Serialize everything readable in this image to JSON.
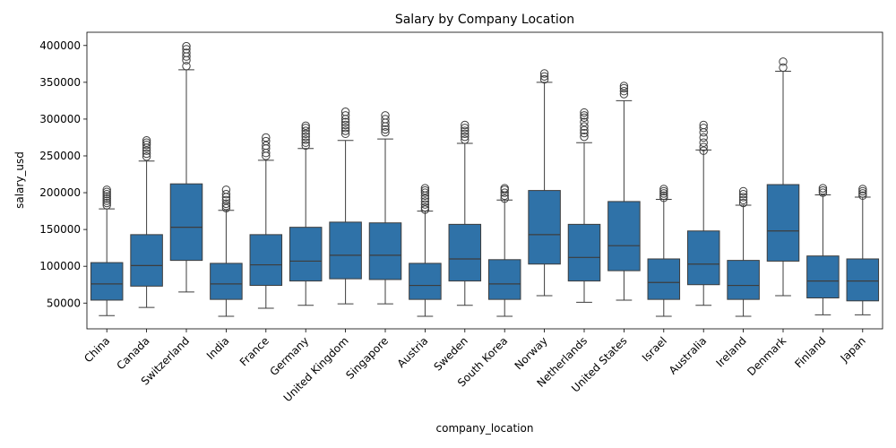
{
  "chart_data": {
    "type": "boxplot",
    "title": "Salary by Company Location",
    "xlabel": "company_location",
    "ylabel": "salary_usd",
    "ylim": [
      15000,
      418000
    ],
    "yticks": [
      50000,
      100000,
      150000,
      200000,
      250000,
      300000,
      350000,
      400000
    ],
    "ytick_labels": [
      "50000",
      "100000",
      "150000",
      "200000",
      "250000",
      "300000",
      "350000",
      "400000"
    ],
    "box_color": "#2f72a8",
    "grid": false,
    "categories": [
      "China",
      "Canada",
      "Switzerland",
      "India",
      "France",
      "Germany",
      "United Kingdom",
      "Singapore",
      "Austria",
      "Sweden",
      "South Korea",
      "Norway",
      "Netherlands",
      "United States",
      "Israel",
      "Australia",
      "Ireland",
      "Denmark",
      "Finland",
      "Japan"
    ],
    "boxes": [
      {
        "whislo": 33000,
        "q1": 54000,
        "med": 76000,
        "q3": 105000,
        "whishi": 178000,
        "fliers": [
          183000,
          186000,
          189000,
          192000,
          195000,
          198000,
          201000,
          204000
        ]
      },
      {
        "whislo": 44000,
        "q1": 73000,
        "med": 101000,
        "q3": 143000,
        "whishi": 243000,
        "fliers": [
          249000,
          253000,
          257000,
          261000,
          265000,
          268000,
          271000
        ]
      },
      {
        "whislo": 65000,
        "q1": 108000,
        "med": 153000,
        "q3": 212000,
        "whishi": 367000,
        "fliers": [
          372000,
          380000,
          385000,
          390000,
          395000,
          399000
        ]
      },
      {
        "whislo": 32000,
        "q1": 55000,
        "med": 76000,
        "q3": 104000,
        "whishi": 176000,
        "fliers": [
          179000,
          182000,
          185000,
          190000,
          194000,
          198000,
          204000
        ]
      },
      {
        "whislo": 43000,
        "q1": 74000,
        "med": 102000,
        "q3": 143000,
        "whishi": 244000,
        "fliers": [
          250000,
          254000,
          260000,
          264000,
          270000,
          275000
        ]
      },
      {
        "whislo": 47000,
        "q1": 80000,
        "med": 107000,
        "q3": 153000,
        "whishi": 260000,
        "fliers": [
          264000,
          268000,
          272000,
          276000,
          280000,
          284000,
          288000,
          291000
        ]
      },
      {
        "whislo": 49000,
        "q1": 83000,
        "med": 115000,
        "q3": 160000,
        "whishi": 271000,
        "fliers": [
          280000,
          284000,
          288000,
          292000,
          296000,
          300000,
          305000,
          310000
        ]
      },
      {
        "whislo": 49000,
        "q1": 82000,
        "med": 115000,
        "q3": 159000,
        "whishi": 273000,
        "fliers": [
          282000,
          286000,
          290000,
          295000,
          300000,
          305000
        ]
      },
      {
        "whislo": 32000,
        "q1": 55000,
        "med": 74000,
        "q3": 104000,
        "whishi": 175000,
        "fliers": [
          177000,
          180000,
          184000,
          188000,
          192000,
          196000,
          200000,
          203000,
          206000
        ]
      },
      {
        "whislo": 47000,
        "q1": 80000,
        "med": 110000,
        "q3": 157000,
        "whishi": 267000,
        "fliers": [
          272000,
          276000,
          280000,
          284000,
          288000,
          292000
        ]
      },
      {
        "whislo": 32000,
        "q1": 55000,
        "med": 76000,
        "q3": 109000,
        "whishi": 190000,
        "fliers": [
          192000,
          196000,
          200000,
          204000,
          206000
        ]
      },
      {
        "whislo": 60000,
        "q1": 103000,
        "med": 143000,
        "q3": 203000,
        "whishi": 350000,
        "fliers": [
          354000,
          358000,
          362000
        ]
      },
      {
        "whislo": 51000,
        "q1": 80000,
        "med": 112000,
        "q3": 157000,
        "whishi": 268000,
        "fliers": [
          276000,
          281000,
          285000,
          290000,
          296000,
          302000,
          305000,
          309000
        ]
      },
      {
        "whislo": 54000,
        "q1": 94000,
        "med": 128000,
        "q3": 188000,
        "whishi": 325000,
        "fliers": [
          334000,
          338000,
          342000,
          345000
        ]
      },
      {
        "whislo": 32000,
        "q1": 55000,
        "med": 78000,
        "q3": 110000,
        "whishi": 191000,
        "fliers": [
          193000,
          196000,
          199000,
          202000,
          205000
        ]
      },
      {
        "whislo": 47000,
        "q1": 75000,
        "med": 103000,
        "q3": 148000,
        "whishi": 258000,
        "fliers": [
          257000,
          262000,
          268000,
          275000,
          282000,
          288000,
          292000
        ]
      },
      {
        "whislo": 32000,
        "q1": 55000,
        "med": 74000,
        "q3": 108000,
        "whishi": 183000,
        "fliers": [
          186000,
          190000,
          194000,
          198000,
          202000
        ]
      },
      {
        "whislo": 60000,
        "q1": 107000,
        "med": 148000,
        "q3": 211000,
        "whishi": 365000,
        "fliers": [
          370000,
          378000
        ]
      },
      {
        "whislo": 34000,
        "q1": 57000,
        "med": 80000,
        "q3": 114000,
        "whishi": 197000,
        "fliers": [
          200000,
          203000,
          206000
        ]
      },
      {
        "whislo": 34000,
        "q1": 53000,
        "med": 80000,
        "q3": 110000,
        "whishi": 194000,
        "fliers": [
          196000,
          199000,
          202000,
          205000
        ]
      }
    ]
  }
}
